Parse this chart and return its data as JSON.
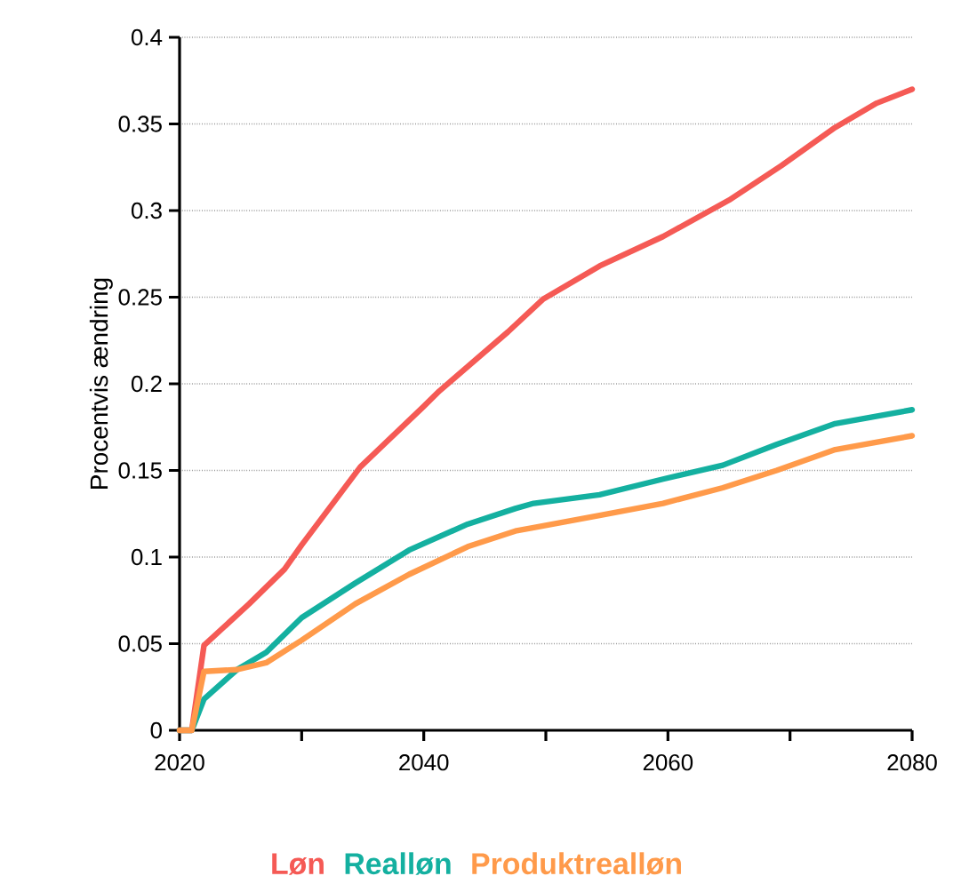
{
  "chart_data": {
    "type": "line",
    "ylabel": "Procentvis ændring",
    "xlim": [
      2020,
      2080
    ],
    "ylim": [
      0,
      0.4
    ],
    "xticks": [
      2020,
      {
        "value": 2030,
        "label": null
      },
      2040,
      {
        "value": 2050,
        "label": null
      },
      2060,
      {
        "value": 2070,
        "label": null
      },
      2080
    ],
    "yticks": [
      0,
      0.05,
      0.1,
      0.15,
      0.2,
      0.25,
      0.3,
      0.35,
      0.4
    ],
    "grid": "y",
    "legend": "bottom",
    "line_style": "solid",
    "marker": "none",
    "series": [
      {
        "name": "Løn",
        "color": "#f55a55",
        "x": [
          2020,
          2021,
          2022,
          2025.7,
          2028.6,
          2030,
          2034.8,
          2040,
          2041.3,
          2046.9,
          2049.8,
          2054.4,
          2059.6,
          2065,
          2069.3,
          2073.7,
          2077.1,
          2080
        ],
        "values": [
          0,
          0,
          0.049,
          0.073,
          0.093,
          0.107,
          0.152,
          0.187,
          0.196,
          0.23,
          0.249,
          0.268,
          0.285,
          0.306,
          0.326,
          0.348,
          0.362,
          0.37
        ]
      },
      {
        "name": "Realløn",
        "color": "#14b0a0",
        "x": [
          2020,
          2021,
          2022,
          2024.7,
          2027.1,
          2030,
          2034.4,
          2038.8,
          2043.6,
          2047.5,
          2049,
          2054.4,
          2059.6,
          2064.5,
          2068.9,
          2073.7,
          2080
        ],
        "values": [
          0,
          0,
          0.018,
          0.035,
          0.045,
          0.065,
          0.085,
          0.104,
          0.119,
          0.128,
          0.131,
          0.136,
          0.145,
          0.153,
          0.165,
          0.177,
          0.185
        ]
      },
      {
        "name": "Produktrealløn",
        "color": "#ff9a4a",
        "x": [
          2020,
          2021,
          2022,
          2024.7,
          2027.1,
          2030,
          2034.4,
          2038.8,
          2043.6,
          2047.5,
          2049,
          2054.4,
          2059.6,
          2064.5,
          2068.9,
          2073.7,
          2080
        ],
        "values": [
          0,
          0,
          0.034,
          0.035,
          0.039,
          0.052,
          0.073,
          0.09,
          0.106,
          0.115,
          0.117,
          0.124,
          0.131,
          0.14,
          0.15,
          0.162,
          0.17
        ]
      }
    ]
  }
}
